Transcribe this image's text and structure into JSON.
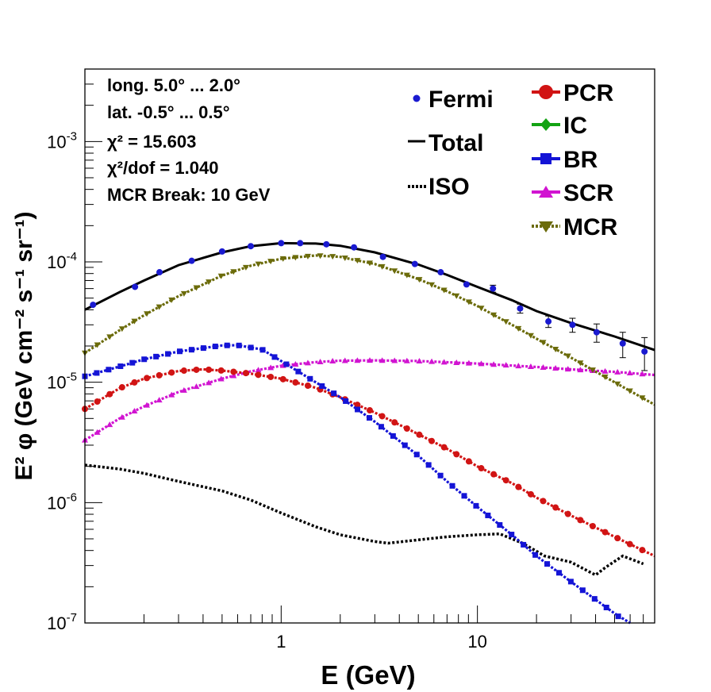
{
  "chart_data": {
    "type": "line",
    "xscale": "log",
    "yscale": "log",
    "xlim": [
      0.1,
      80
    ],
    "ylim": [
      1e-07,
      0.004
    ],
    "xlabel": "E (GeV)",
    "ylabel": "E² φ (GeV cm⁻² s⁻¹ sr⁻¹)",
    "x_tick_labels": [
      "1",
      "10"
    ],
    "y_tick_labels": [
      {
        "base": "10",
        "exp": "-7",
        "value": 1e-07
      },
      {
        "base": "10",
        "exp": "-6",
        "value": 1e-06
      },
      {
        "base": "10",
        "exp": "-5",
        "value": 1e-05
      },
      {
        "base": "10",
        "exp": "-4",
        "value": 0.0001
      },
      {
        "base": "10",
        "exp": "-3",
        "value": 0.001
      }
    ],
    "annotations": [
      "long. 5.0° ... 2.0°",
      "lat. -0.5° ... 0.5°",
      "χ² = 15.603",
      "χ²/dof = 1.040",
      "MCR Break: 10 GeV"
    ],
    "legend_left": [
      {
        "label": "Fermi",
        "marker": "circle",
        "color": "#1a1ad0"
      },
      {
        "label": "Total",
        "marker": "solid-line",
        "color": "#000000"
      },
      {
        "label": "ISO",
        "marker": "dotted-line",
        "color": "#000000"
      }
    ],
    "legend_right": [
      {
        "label": "PCR",
        "marker": "circle",
        "color": "#d11414"
      },
      {
        "label": "IC",
        "marker": "diamond",
        "color": "#13a313"
      },
      {
        "label": "BR",
        "marker": "square",
        "color": "#1414d6"
      },
      {
        "label": "SCR",
        "marker": "triangle-up",
        "color": "#d114d1"
      },
      {
        "label": "MCR",
        "marker": "triangle-down",
        "color": "#6b6b0a"
      }
    ],
    "fermi": {
      "x": [
        0.11,
        0.18,
        0.24,
        0.35,
        0.5,
        0.7,
        1.0,
        1.25,
        1.7,
        2.35,
        3.3,
        4.8,
        6.5,
        8.8,
        12.0,
        16.5,
        23.0,
        30.5,
        40.5,
        55.0,
        71.0
      ],
      "y": [
        4.4e-05,
        6.2e-05,
        8.2e-05,
        0.000102,
        0.000122,
        0.000135,
        0.000143,
        0.000143,
        0.00014,
        0.000132,
        0.00011,
        9.6e-05,
        8.2e-05,
        6.5e-05,
        6e-05,
        4.1e-05,
        3.2e-05,
        3e-05,
        2.6e-05,
        2.1e-05,
        1.8e-05
      ],
      "yerr": [
        0,
        0,
        0,
        0,
        0,
        0,
        0,
        0,
        0,
        0,
        0,
        0,
        0,
        0,
        4e-06,
        3.5e-06,
        3.5e-06,
        4e-06,
        4.5e-06,
        5e-06,
        5.5e-06
      ]
    },
    "series": [
      {
        "key": "total",
        "style": "solid",
        "color": "#000000",
        "x": [
          0.1,
          0.15,
          0.2,
          0.3,
          0.5,
          0.7,
          1.0,
          1.5,
          2.0,
          3.0,
          5.0,
          7.0,
          10,
          15,
          20,
          30,
          50,
          80
        ],
        "y": [
          4e-05,
          5.6e-05,
          7e-05,
          9.4e-05,
          0.00012,
          0.000135,
          0.000143,
          0.000142,
          0.000136,
          0.00012,
          9.5e-05,
          7.8e-05,
          6.2e-05,
          4.8e-05,
          3.9e-05,
          3.1e-05,
          2.4e-05,
          1.85e-05
        ]
      },
      {
        "key": "mcr",
        "style": "markers",
        "marker": "triangle-down",
        "color": "#6b6b0a",
        "x": [
          0.1,
          0.15,
          0.2,
          0.3,
          0.5,
          0.7,
          1.0,
          1.5,
          2.0,
          3.0,
          5.0,
          7.0,
          10,
          15,
          20,
          30,
          50,
          80
        ],
        "y": [
          1.75e-05,
          2.7e-05,
          3.6e-05,
          5.2e-05,
          7.7e-05,
          9.3e-05,
          0.000106,
          0.000113,
          0.00011,
          9.6e-05,
          7.2e-05,
          5.7e-05,
          4.3e-05,
          3e-05,
          2.3e-05,
          1.6e-05,
          1e-05,
          6.5e-06
        ]
      },
      {
        "key": "br",
        "style": "markers",
        "marker": "square",
        "color": "#1414d6",
        "x": [
          0.1,
          0.15,
          0.2,
          0.3,
          0.5,
          0.6,
          0.8,
          1.0,
          1.5,
          2.0,
          3.0,
          5.0,
          7.0,
          10,
          15,
          20,
          30,
          50,
          60
        ],
        "y": [
          1.12e-05,
          1.35e-05,
          1.55e-05,
          1.8e-05,
          2.02e-05,
          2.03e-05,
          1.87e-05,
          1.5e-05,
          1e-05,
          7.5e-06,
          4.7e-06,
          2.45e-06,
          1.5e-06,
          9.2e-07,
          5.4e-07,
          3.6e-07,
          2.2e-07,
          1.2e-07,
          9.5e-08
        ]
      },
      {
        "key": "pcr",
        "style": "markers",
        "marker": "circle",
        "color": "#d11414",
        "x": [
          0.1,
          0.15,
          0.2,
          0.3,
          0.4,
          0.5,
          0.7,
          1.0,
          1.5,
          2.0,
          3.0,
          5.0,
          7.0,
          10,
          15,
          20,
          30,
          50,
          80
        ],
        "y": [
          6e-06,
          8.9e-06,
          1.07e-05,
          1.24e-05,
          1.28e-05,
          1.25e-05,
          1.18e-05,
          1.07e-05,
          9e-06,
          7.5e-06,
          5.6e-06,
          3.7e-06,
          2.8e-06,
          2e-06,
          1.45e-06,
          1.1e-06,
          7.8e-07,
          5.2e-07,
          3.6e-07
        ]
      },
      {
        "key": "scr",
        "style": "markers",
        "marker": "triangle-up",
        "color": "#d114d1",
        "x": [
          0.1,
          0.15,
          0.2,
          0.3,
          0.5,
          0.7,
          1.0,
          1.5,
          2.0,
          3.0,
          5.0,
          10,
          20,
          30,
          50,
          80
        ],
        "y": [
          3.3e-06,
          5e-06,
          6.3e-06,
          8.3e-06,
          1.07e-05,
          1.23e-05,
          1.37e-05,
          1.47e-05,
          1.51e-05,
          1.52e-05,
          1.5e-05,
          1.43e-05,
          1.34e-05,
          1.28e-05,
          1.22e-05,
          1.15e-05
        ]
      },
      {
        "key": "iso",
        "style": "dotted",
        "color": "#000000",
        "x": [
          0.1,
          0.15,
          0.2,
          0.3,
          0.5,
          0.7,
          1.0,
          1.5,
          2.0,
          3.0,
          3.5,
          5.0,
          7.0,
          10,
          13,
          17,
          22,
          30,
          40,
          45,
          55,
          70
        ],
        "y": [
          2.05e-06,
          1.9e-06,
          1.75e-06,
          1.5e-06,
          1.25e-06,
          1.05e-06,
          8.2e-07,
          6.3e-07,
          5.4e-07,
          4.75e-07,
          4.6e-07,
          4.9e-07,
          5.2e-07,
          5.4e-07,
          5.5e-07,
          4.6e-07,
          3.6e-07,
          3.2e-07,
          2.5e-07,
          2.9e-07,
          3.6e-07,
          3.1e-07
        ]
      }
    ]
  }
}
